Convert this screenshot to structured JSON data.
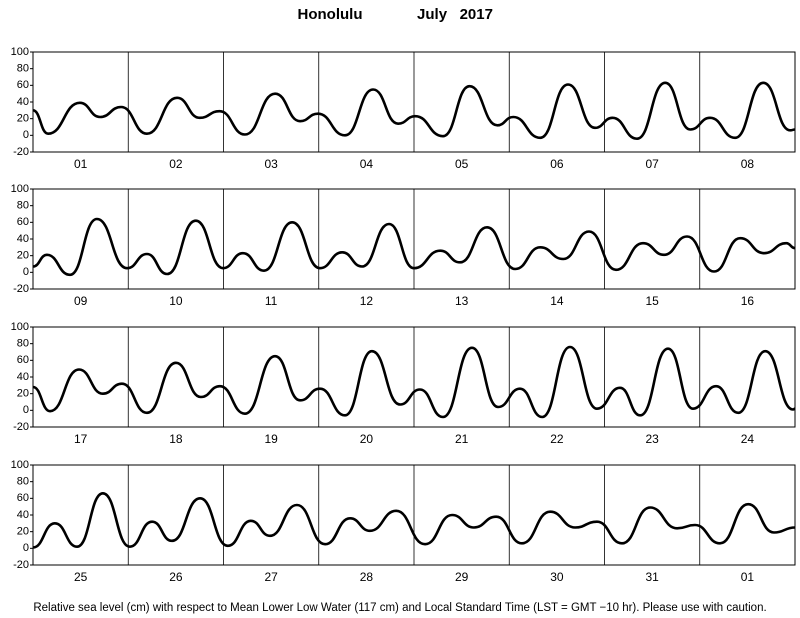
{
  "title": "Honolulu",
  "subtitle": "July   2017",
  "footer": "Relative sea level (cm) with respect to Mean Lower Low Water (117 cm) and Local Standard Time (LST = GMT −10 hr). Please use with caution.",
  "chart_data": [
    {
      "type": "line",
      "categories": [
        "01",
        "02",
        "03",
        "04",
        "05",
        "06",
        "07",
        "08"
      ],
      "xlim": [
        0,
        192
      ],
      "ylim": [
        -20,
        100
      ],
      "yticks": [
        -20,
        0,
        20,
        40,
        60,
        80,
        100
      ],
      "color": "#000000",
      "x": [
        0,
        3.8,
        11.8,
        16.9,
        22.2,
        28.7,
        36.3,
        42,
        47,
        53.4,
        61,
        67.3,
        71.8,
        78.6,
        85.7,
        92,
        96.3,
        103.3,
        110,
        117,
        121,
        127.8,
        134.8,
        141.6,
        146,
        152.2,
        159.3,
        165.6,
        170.6,
        176.9,
        184,
        190.8,
        192
      ],
      "values": [
        30,
        2,
        39,
        22,
        34,
        2,
        45,
        21,
        29,
        1,
        50,
        17,
        26,
        0,
        55,
        14,
        23,
        -1,
        59,
        12,
        22,
        -3,
        61,
        9,
        21,
        -4,
        63,
        7,
        21,
        -3,
        63,
        6,
        7
      ]
    },
    {
      "type": "line",
      "categories": [
        "09",
        "10",
        "11",
        "12",
        "13",
        "14",
        "15",
        "16"
      ],
      "xlim": [
        0,
        192
      ],
      "ylim": [
        -20,
        100
      ],
      "yticks": [
        -20,
        0,
        20,
        40,
        60,
        80,
        100
      ],
      "color": "#000000",
      "x": [
        0,
        3.5,
        9.3,
        16.1,
        23.7,
        28.7,
        33.8,
        41,
        47.9,
        52.9,
        58.2,
        65.3,
        72.3,
        77.9,
        82.9,
        89.7,
        96,
        102.6,
        107.6,
        114.4,
        121.5,
        127.8,
        133.6,
        140.1,
        146.9,
        153.7,
        159,
        164.8,
        171.6,
        178.2,
        184.2,
        189.8,
        192
      ],
      "values": [
        7,
        21,
        -3,
        64,
        5,
        22,
        -2,
        62,
        5,
        23,
        2,
        60,
        5,
        24,
        7,
        58,
        5,
        26,
        12,
        54,
        4,
        30,
        16,
        49,
        3,
        35,
        21,
        43,
        1,
        41,
        23,
        35,
        29
      ]
    },
    {
      "type": "line",
      "categories": [
        "17",
        "18",
        "19",
        "20",
        "21",
        "22",
        "23",
        "24"
      ],
      "xlim": [
        0,
        192
      ],
      "ylim": [
        -20,
        100
      ],
      "yticks": [
        -20,
        0,
        20,
        40,
        60,
        80,
        100
      ],
      "color": "#000000",
      "x": [
        0,
        4.3,
        11.6,
        17.6,
        22.4,
        28.7,
        36,
        42.3,
        47.1,
        53.4,
        61,
        67.3,
        72.3,
        78.6,
        85.4,
        92.5,
        97.5,
        103.3,
        110.6,
        117.2,
        122.7,
        128.3,
        135.3,
        142.1,
        147.9,
        153,
        160,
        166.3,
        172.1,
        177.7,
        184.5,
        191.5,
        192
      ],
      "values": [
        28,
        -1,
        49,
        20,
        32,
        -3,
        57,
        16,
        29,
        -4,
        65,
        12,
        26,
        -6,
        71,
        7,
        25,
        -8,
        75,
        4,
        26,
        -8,
        76,
        2,
        27,
        -6,
        74,
        2,
        29,
        -3,
        71,
        1,
        2
      ]
    },
    {
      "type": "line",
      "categories": [
        "25",
        "26",
        "27",
        "28",
        "29",
        "30",
        "31",
        "01"
      ],
      "xlim": [
        0,
        192
      ],
      "ylim": [
        -20,
        100
      ],
      "yticks": [
        -20,
        0,
        20,
        40,
        60,
        80,
        100
      ],
      "color": "#000000",
      "x": [
        0,
        5.5,
        11.1,
        17.6,
        24.4,
        30,
        35,
        42.1,
        49.1,
        54.9,
        59.7,
        66.5,
        73.6,
        79.9,
        84.9,
        91.5,
        98.8,
        105.6,
        111.1,
        116.7,
        123.2,
        130.3,
        136.6,
        142.1,
        148.4,
        155.5,
        162.3,
        166.8,
        173.1,
        180.2,
        186.7,
        192
      ],
      "values": [
        1,
        30,
        2,
        66,
        2,
        32,
        9,
        60,
        3,
        33,
        15,
        52,
        5,
        36,
        21,
        45,
        5,
        40,
        25,
        38,
        6,
        44,
        25,
        32,
        6,
        49,
        24,
        28,
        6,
        53,
        19,
        25
      ]
    }
  ]
}
